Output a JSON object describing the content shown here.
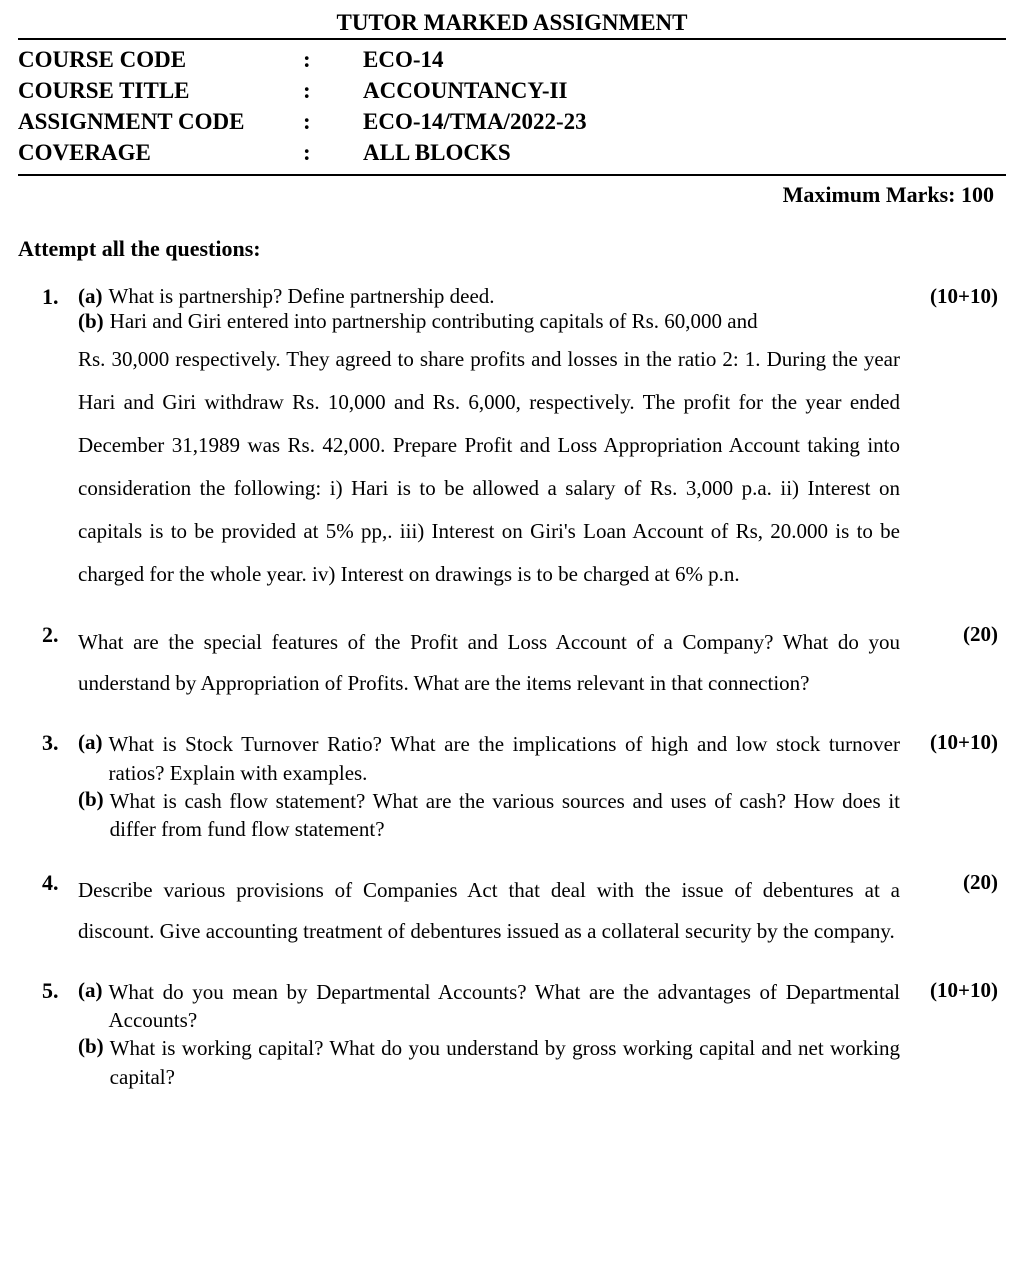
{
  "title": "TUTOR MARKED ASSIGNMENT",
  "meta": {
    "course_code_label": "COURSE CODE",
    "course_code_value": "ECO-14",
    "course_title_label": "COURSE TITLE",
    "course_title_value": "ACCOUNTANCY-II",
    "assignment_code_label": "ASSIGNMENT CODE",
    "assignment_code_value": "ECO-14/TMA/2022-23",
    "coverage_label": "COVERAGE",
    "coverage_value": "ALL BLOCKS",
    "colon": ":"
  },
  "max_marks": "Maximum Marks: 100",
  "instruction": "Attempt all the questions:",
  "q1": {
    "num": "1.",
    "marks": "(10+10)",
    "a_label": "(a)",
    "a_text": "What is partnership? Define partnership deed.",
    "b_label": "(b)",
    "b_text_lead": "Hari and Giri entered into partnership contributing capitals of Rs. 60,000 and",
    "b_text_rest": "Rs. 30,000 respectively. They agreed to share profits and losses in the ratio 2: 1. During the year Hari and Giri withdraw Rs. 10,000 and Rs. 6,000, respectively. The profit for the year ended December 31,1989 was Rs. 42,000. Prepare Profit and Loss Appropriation Account taking into consideration the following: i) Hari is to be allowed a salary of Rs. 3,000 p.a. ii) Interest on capitals is to be provided at 5% pp,. iii) Interest on Giri's Loan Account of Rs, 20.000 is to be charged for the whole year. iv) Interest on drawings is to be charged at 6% p.n."
  },
  "q2": {
    "num": "2.",
    "marks": "(20)",
    "text": "What are the special features of the Profit and Loss Account of a Company? What do you understand by Appropriation of Profits. What are the items relevant in that connection?"
  },
  "q3": {
    "num": "3.",
    "marks": "(10+10)",
    "a_label": "(a)",
    "a_text": "What is Stock Turnover Ratio? What are the implications of high and low stock turnover ratios? Explain with examples.",
    "b_label": "(b)",
    "b_text": "What is cash flow statement? What are the various sources and uses of cash? How does it differ from fund flow statement?"
  },
  "q4": {
    "num": "4.",
    "marks": "(20)",
    "text": "Describe various provisions of Companies Act that deal with the issue of debentures at a discount. Give accounting treatment of debentures issued as a collateral security by the company."
  },
  "q5": {
    "num": "5.",
    "marks": "(10+10)",
    "a_label": "(a)",
    "a_text": "What do you mean by Departmental Accounts? What are the advantages of Departmental Accounts?",
    "b_label": "(b)",
    "b_text": "What is working capital? What do you understand by gross working capital and net working capital?"
  }
}
